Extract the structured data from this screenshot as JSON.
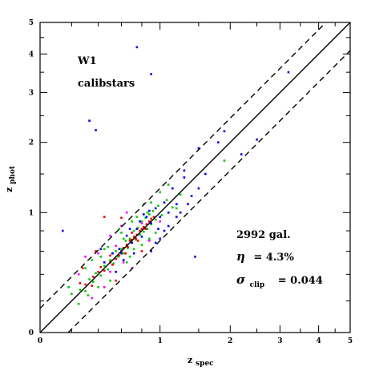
{
  "chart_data": {
    "type": "scatter",
    "title": "",
    "xlabel": "z",
    "xlabel_sub": "spec",
    "ylabel": "z",
    "ylabel_sub": "phot",
    "xscale": "log(1+z)",
    "yscale": "log(1+z)",
    "xlim": [
      0,
      5
    ],
    "ylim": [
      0,
      5
    ],
    "xticks": [
      0,
      1,
      2,
      3,
      4,
      5
    ],
    "yticks": [
      0,
      1,
      2,
      3,
      4,
      5
    ],
    "grid": false,
    "reference_lines": [
      {
        "style": "solid",
        "relation": "z_phot = z_spec"
      },
      {
        "style": "dashed",
        "relation": "z_phot = z_spec + 0.15(1+z_spec)"
      },
      {
        "style": "dashed",
        "relation": "z_phot = z_spec - 0.15(1+z_spec)"
      }
    ],
    "annotations": {
      "field": "W1",
      "calibration": "calibstars",
      "n_gal": "2992 gal.",
      "eta_symbol": "η",
      "eta_value": "= 4.3%",
      "sigma_symbol": "σ",
      "sigma_sub": "clip",
      "sigma_value": "= 0.044"
    },
    "series": [
      {
        "color": "#00cc00",
        "points": [
          [
            0.26,
            0.28
          ],
          [
            0.3,
            0.27
          ],
          [
            0.33,
            0.36
          ],
          [
            0.36,
            0.34
          ],
          [
            0.38,
            0.41
          ],
          [
            0.42,
            0.39
          ],
          [
            0.45,
            0.47
          ],
          [
            0.48,
            0.44
          ],
          [
            0.5,
            0.52
          ],
          [
            0.53,
            0.49
          ],
          [
            0.55,
            0.6
          ],
          [
            0.57,
            0.55
          ],
          [
            0.6,
            0.62
          ],
          [
            0.62,
            0.58
          ],
          [
            0.64,
            0.7
          ],
          [
            0.66,
            0.63
          ],
          [
            0.68,
            0.72
          ],
          [
            0.7,
            0.68
          ],
          [
            0.72,
            0.8
          ],
          [
            0.74,
            0.71
          ],
          [
            0.76,
            0.83
          ],
          [
            0.78,
            0.76
          ],
          [
            0.8,
            0.9
          ],
          [
            0.82,
            0.79
          ],
          [
            0.84,
            0.94
          ],
          [
            0.86,
            0.82
          ],
          [
            0.88,
            0.98
          ],
          [
            0.9,
            0.87
          ],
          [
            0.92,
            1.02
          ],
          [
            0.95,
            0.92
          ],
          [
            0.98,
            1.08
          ],
          [
            1.02,
            0.97
          ],
          [
            1.08,
            1.15
          ],
          [
            1.15,
            1.06
          ],
          [
            1.25,
            1.22
          ],
          [
            0.35,
            0.52
          ],
          [
            0.45,
            0.62
          ],
          [
            0.58,
            0.82
          ],
          [
            0.7,
            0.9
          ],
          [
            0.82,
            1.1
          ],
          [
            0.25,
            0.18
          ],
          [
            0.4,
            0.3
          ],
          [
            0.55,
            0.42
          ],
          [
            0.68,
            0.55
          ],
          [
            0.8,
            0.66
          ],
          [
            1.0,
            1.25
          ],
          [
            0.9,
            1.12
          ],
          [
            0.6,
            0.78
          ],
          [
            0.48,
            0.64
          ],
          [
            0.32,
            0.24
          ],
          [
            1.9,
            1.7
          ],
          [
            0.3,
            0.45
          ],
          [
            0.5,
            0.35
          ],
          [
            0.75,
            0.95
          ],
          [
            0.95,
            0.78
          ],
          [
            0.65,
            0.5
          ],
          [
            1.1,
            1.35
          ],
          [
            0.2,
            0.25
          ],
          [
            0.42,
            0.55
          ],
          [
            0.88,
            0.72
          ],
          [
            0.72,
            0.62
          ],
          [
            0.62,
            0.72
          ],
          [
            0.52,
            0.58
          ],
          [
            0.86,
            1.0
          ],
          [
            1.2,
            1.05
          ],
          [
            0.18,
            0.3
          ]
        ]
      },
      {
        "color": "#ee0000",
        "points": [
          [
            0.3,
            0.32
          ],
          [
            0.35,
            0.31
          ],
          [
            0.4,
            0.42
          ],
          [
            0.45,
            0.43
          ],
          [
            0.5,
            0.5
          ],
          [
            0.55,
            0.53
          ],
          [
            0.6,
            0.6
          ],
          [
            0.62,
            0.63
          ],
          [
            0.65,
            0.66
          ],
          [
            0.68,
            0.7
          ],
          [
            0.7,
            0.71
          ],
          [
            0.72,
            0.74
          ],
          [
            0.75,
            0.76
          ],
          [
            0.78,
            0.8
          ],
          [
            0.8,
            0.82
          ],
          [
            0.82,
            0.84
          ],
          [
            0.85,
            0.87
          ],
          [
            0.88,
            0.9
          ],
          [
            0.9,
            0.93
          ],
          [
            0.93,
            0.95
          ],
          [
            0.58,
            0.56
          ],
          [
            0.66,
            0.64
          ],
          [
            0.74,
            0.72
          ],
          [
            0.84,
            0.82
          ],
          [
            0.36,
            0.38
          ],
          [
            0.42,
            0.46
          ],
          [
            0.52,
            0.48
          ],
          [
            0.7,
            0.78
          ],
          [
            0.6,
            0.94
          ],
          [
            0.45,
            0.95
          ],
          [
            0.38,
            0.6
          ],
          [
            0.28,
            0.45
          ],
          [
            0.55,
            0.35
          ],
          [
            0.8,
            0.6
          ],
          [
            0.26,
            0.33
          ],
          [
            0.64,
            0.58
          ],
          [
            0.76,
            0.7
          ],
          [
            0.5,
            0.56
          ]
        ]
      },
      {
        "color": "#0000ee",
        "points": [
          [
            0.45,
            0.5
          ],
          [
            0.52,
            0.58
          ],
          [
            0.6,
            0.58
          ],
          [
            0.65,
            0.75
          ],
          [
            0.7,
            0.68
          ],
          [
            0.75,
            0.82
          ],
          [
            0.8,
            0.74
          ],
          [
            0.85,
            0.95
          ],
          [
            0.9,
            0.88
          ],
          [
            0.95,
            1.05
          ],
          [
            1.0,
            0.95
          ],
          [
            1.05,
            1.12
          ],
          [
            1.1,
            1.0
          ],
          [
            1.15,
            1.3
          ],
          [
            1.2,
            1.1
          ],
          [
            1.3,
            1.45
          ],
          [
            1.4,
            1.2
          ],
          [
            1.5,
            1.3
          ],
          [
            1.6,
            1.5
          ],
          [
            0.9,
            0.6
          ],
          [
            0.95,
            0.68
          ],
          [
            1.0,
            0.72
          ],
          [
            1.05,
            0.8
          ],
          [
            1.1,
            0.85
          ],
          [
            1.2,
            0.95
          ],
          [
            0.58,
            0.62
          ],
          [
            0.78,
            0.9
          ],
          [
            0.88,
            1.02
          ],
          [
            0.72,
            0.58
          ],
          [
            0.98,
            0.82
          ],
          [
            1.25,
            1.0
          ],
          [
            0.68,
            0.82
          ],
          [
            0.82,
            0.98
          ],
          [
            0.55,
            0.42
          ],
          [
            0.62,
            0.52
          ],
          [
            1.35,
            1.1
          ],
          [
            0.75,
            4.2
          ],
          [
            0.9,
            3.45
          ],
          [
            0.33,
            2.4
          ],
          [
            0.38,
            2.22
          ],
          [
            1.8,
            2.0
          ],
          [
            1.9,
            2.2
          ],
          [
            2.5,
            2.05
          ],
          [
            3.2,
            3.5
          ],
          [
            2.2,
            1.8
          ],
          [
            0.14,
            0.8
          ],
          [
            1.5,
            1.9
          ],
          [
            1.3,
            1.55
          ],
          [
            0.42,
            0.62
          ],
          [
            1.45,
            0.55
          ]
        ]
      },
      {
        "color": "#ff00ff",
        "points": [
          [
            0.3,
            0.55
          ],
          [
            0.4,
            0.58
          ],
          [
            0.55,
            0.65
          ],
          [
            0.62,
            0.5
          ],
          [
            0.35,
            0.22
          ],
          [
            0.5,
            0.75
          ],
          [
            0.8,
            0.88
          ],
          [
            0.7,
            0.45
          ],
          [
            0.45,
            0.3
          ],
          [
            0.88,
            0.7
          ],
          [
            0.6,
            0.85
          ],
          [
            0.25,
            0.4
          ],
          [
            1.0,
            0.9
          ],
          [
            0.65,
            1.0
          ],
          [
            0.5,
            0.42
          ]
        ]
      }
    ]
  }
}
